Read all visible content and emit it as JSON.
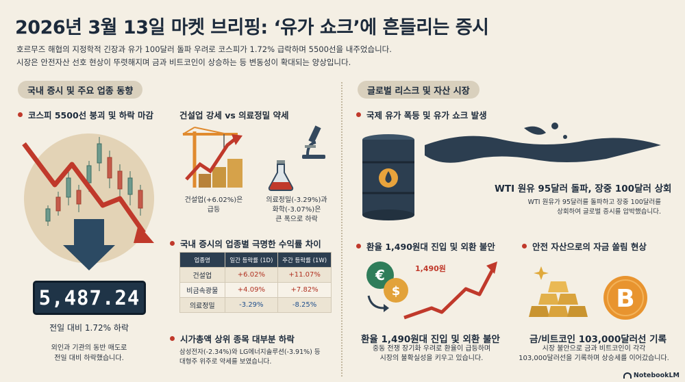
{
  "header": {
    "title": "2026년 3월 13일 마켓 브리핑: ‘유가 쇼크’에 흔들리는 증시",
    "subtitle_line1": "호르무즈 해협의 지정학적 긴장과 유가 100달러 돌파 우려로 코스피가 1.72% 급락하며 5500선을 내주었습니다.",
    "subtitle_line2": "시장은 안전자산 선호 현상이 뚜렷해지며 금과 비트코인이 상승하는 등 변동성이 확대되는 양상입니다."
  },
  "left": {
    "section_title": "국내 증시 및 주요 업종 동향",
    "kospi": {
      "heading": "코스피 5500선 붕괴 및 하락 마감",
      "value": "5,487.24",
      "change": "전일 대비 1.72% 하락",
      "desc_line1": "외인과 기관의 동반 매도로",
      "desc_line2": "전일 대비 하락했습니다."
    },
    "sectors": {
      "heading": "건설업 강세 vs 의료정밀 약세",
      "construction_line1": "건설업(+6.02%)은",
      "construction_line2": "급등",
      "medical_line1": "의료정밀(-3.29%)과",
      "medical_line2": "화학(-3.07%)은",
      "medical_line3": "큰 폭으로 하락"
    },
    "returns": {
      "heading": "국내 증시의 업종별 극명한 수익률 차이",
      "columns": [
        "업종명",
        "일간 등락률 (1D)",
        "주간 등락률 (1W)"
      ],
      "rows": [
        {
          "name": "건설업",
          "d1": "+6.02%",
          "w1": "+11.07%"
        },
        {
          "name": "비금속광물",
          "d1": "+4.09%",
          "w1": "+7.82%"
        },
        {
          "name": "의료정밀",
          "d1": "-3.29%",
          "w1": "-8.25%"
        }
      ]
    },
    "bigcaps": {
      "heading": "시가총액 상위 종목 대부분 하락",
      "desc_line1": "삼성전자(-2.34%)와 LG에너지솔루션(-3.91%) 등",
      "desc_line2": "대형주 위주로 약세를 보였습니다."
    }
  },
  "right": {
    "section_title": "글로벌 리스크 및 자산 시장",
    "oil": {
      "heading": "국제 유가 폭등 및 유가 쇼크 발생",
      "big": "WTI 원유 95달러 돌파, 장중 100달러 상회",
      "desc_line1": "WTI 원유가 95달러를 돌파하고 장중 100달러를",
      "desc_line2": "상회하여 글로벌 증시를 압박했습니다."
    },
    "fx": {
      "heading": "환율 1,490원대 진입 및 외환 불안",
      "chart_label": "1,490원",
      "big": "환율 1,490원대 진입 및 외환 불안",
      "desc_line1": "중동 전쟁 장기화 우려로 환율이 급등하며",
      "desc_line2": "시장의 불확실성을 키우고 있습니다."
    },
    "safe": {
      "heading": "안전 자산으로의 자금 쏠림 현상",
      "big": "금/비트코인 103,000달러선 기록",
      "desc_line1": "시장 불안으로 금과 비트코인이 각각",
      "desc_line2": "103,000달러선을 기록하며 상승세를 이어갔습니다."
    }
  },
  "footer": {
    "logo": "NotebookLM"
  },
  "icons": {
    "kospi_chart": "falling-candlestick-chart-icon",
    "construction": "construction-crane-icon",
    "medical": "microscope-icon",
    "chemical": "flask-icon",
    "oil": "oil-barrel-icon",
    "fx": "currency-exchange-icon",
    "gold": "gold-bars-icon",
    "bitcoin": "bitcoin-icon"
  },
  "colors": {
    "accent_red": "#c0392b",
    "navy": "#1f3447",
    "positive": "#b03020",
    "negative": "#1e4e8c",
    "background": "#f4efe4"
  }
}
